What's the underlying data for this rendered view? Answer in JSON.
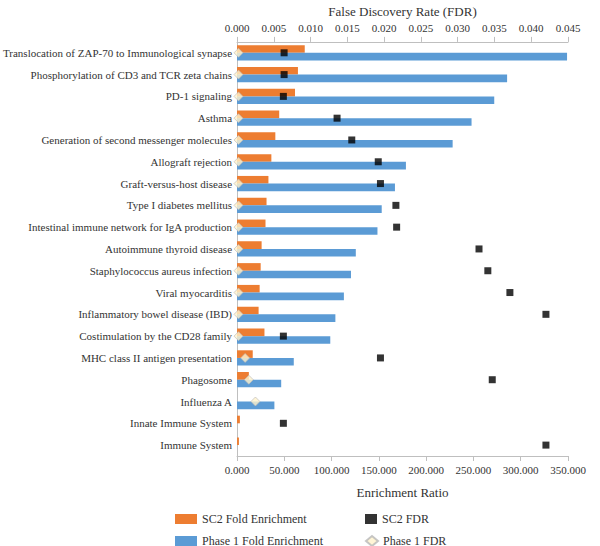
{
  "chart_data": {
    "type": "bar",
    "orientation": "horizontal",
    "grid": false,
    "xlabel": "Enrichment Ratio",
    "x2label": "False Discovery Rate (FDR)",
    "categories": [
      "Translocation of ZAP-70 to Immunological synapse",
      "Phosphorylation of CD3 and TCR zeta chains",
      "PD-1 signaling",
      "Asthma",
      "Generation of second messenger molecules",
      "Allograft rejection",
      "Graft-versus-host disease",
      "Type I diabetes mellitus",
      "Intestinal immune network for IgA production",
      "Autoimmune thyroid disease",
      "Staphylococcus aureus infection",
      "Viral myocarditis",
      "Inflammatory bowel disease (IBD)",
      "Costimulation by the CD28 family",
      "MHC class II antigen presentation",
      "Phagosome",
      "Influenza A",
      "Innate Immune System",
      "Immune System"
    ],
    "xlim": [
      0,
      350
    ],
    "xticks": [
      {
        "value": 0,
        "label": "0.000"
      },
      {
        "value": 50,
        "label": "50.000"
      },
      {
        "value": 100,
        "label": "100.000"
      },
      {
        "value": 150,
        "label": "150.000"
      },
      {
        "value": 200,
        "label": "200.000"
      },
      {
        "value": 250,
        "label": "250.000"
      },
      {
        "value": 300,
        "label": "300.000"
      },
      {
        "value": 350,
        "label": "350.000"
      }
    ],
    "x2lim": [
      0,
      0.045
    ],
    "x2ticks": [
      {
        "value": 0,
        "label": "0.000"
      },
      {
        "value": 0.005,
        "label": "0.005"
      },
      {
        "value": 0.01,
        "label": "0.010"
      },
      {
        "value": 0.015,
        "label": "0.015"
      },
      {
        "value": 0.02,
        "label": "0.020"
      },
      {
        "value": 0.025,
        "label": "0.025"
      },
      {
        "value": 0.03,
        "label": "0.030"
      },
      {
        "value": 0.035,
        "label": "0.035"
      },
      {
        "value": 0.04,
        "label": "0.040"
      },
      {
        "value": 0.045,
        "label": "0.045"
      }
    ],
    "series": [
      {
        "name": "SC2 Fold Enrichment",
        "type": "bar",
        "color": "#ed7d31",
        "values": [
          71.6,
          64.4,
          61.3,
          44.6,
          40.5,
          36.3,
          33.2,
          31.2,
          30.1,
          26.0,
          25.0,
          23.9,
          22.8,
          29.0,
          16.6,
          12.5,
          null,
          3.0,
          2.0
        ]
      },
      {
        "name": "Phase 1 Fold Enrichment",
        "type": "bar",
        "color": "#5b9bd5",
        "values": [
          349,
          285.6,
          272,
          248,
          228,
          178.6,
          167,
          153,
          148.5,
          125.6,
          120.5,
          113,
          104,
          98.6,
          60,
          46.7,
          39.5,
          null,
          null
        ]
      },
      {
        "name": "SC2 FDR",
        "type": "scatter",
        "axis": "x2",
        "marker": "square",
        "color": "#000000",
        "values": [
          0.0064,
          0.0064,
          0.0063,
          0.0136,
          0.0156,
          0.0192,
          0.0195,
          0.0216,
          0.0217,
          0.0329,
          0.0341,
          0.0371,
          0.042,
          0.0063,
          0.0195,
          0.0347,
          null,
          0.0063,
          0.042
        ]
      },
      {
        "name": "Phase 1 FDR",
        "type": "scatter",
        "axis": "x2",
        "marker": "diamond",
        "color": "#fff2cc",
        "values": [
          0.0002,
          0.0002,
          0.0002,
          0.0002,
          0.0002,
          0.0002,
          0.0002,
          0.0002,
          0.0002,
          0.0002,
          0.0002,
          0.0002,
          0.0002,
          0.0002,
          0.0011,
          0.0016,
          0.0025,
          null,
          null
        ]
      }
    ]
  }
}
